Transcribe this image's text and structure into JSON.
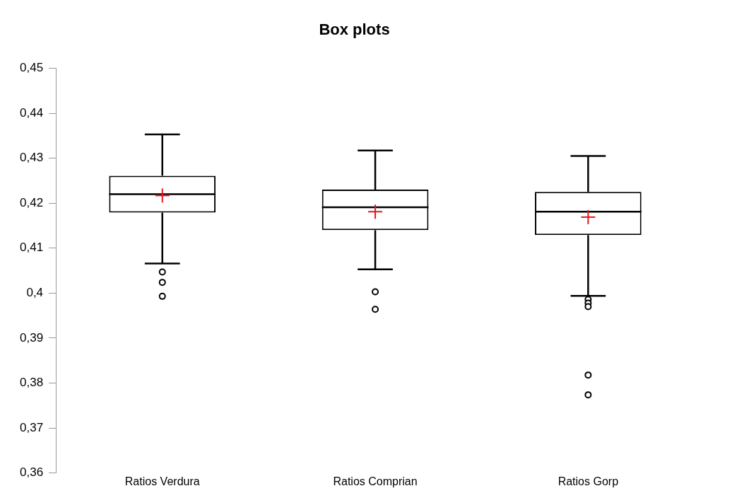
{
  "chart_data": {
    "type": "box",
    "title": "Box plots",
    "categories": [
      "Ratios Verdura",
      "Ratios Comprian",
      "Ratios Gorp"
    ],
    "boxes": [
      {
        "low": 0.4066,
        "q1": 0.4179,
        "median": 0.422,
        "q3": 0.4261,
        "high": 0.4353,
        "mean": 0.4217,
        "outliers": [
          0.4047,
          0.4024,
          0.3993
        ]
      },
      {
        "low": 0.4053,
        "q1": 0.414,
        "median": 0.4191,
        "q3": 0.423,
        "high": 0.4317,
        "mean": 0.4181,
        "outliers": [
          0.4003,
          0.3964
        ]
      },
      {
        "low": 0.3994,
        "q1": 0.4129,
        "median": 0.4181,
        "q3": 0.4225,
        "high": 0.4305,
        "mean": 0.4169,
        "outliers": [
          0.3986,
          0.3978,
          0.397,
          0.3818,
          0.3774
        ]
      }
    ],
    "ylim": [
      0.36,
      0.45
    ],
    "yticks": [
      {
        "value": 0.36,
        "label": "0,36"
      },
      {
        "value": 0.37,
        "label": "0,37"
      },
      {
        "value": 0.38,
        "label": "0,38"
      },
      {
        "value": 0.39,
        "label": "0,39"
      },
      {
        "value": 0.4,
        "label": "0,4"
      },
      {
        "value": 0.41,
        "label": "0,41"
      },
      {
        "value": 0.42,
        "label": "0,42"
      },
      {
        "value": 0.43,
        "label": "0,43"
      },
      {
        "value": 0.44,
        "label": "0,44"
      },
      {
        "value": 0.45,
        "label": "0,45"
      }
    ],
    "grid": false,
    "legend": false
  }
}
